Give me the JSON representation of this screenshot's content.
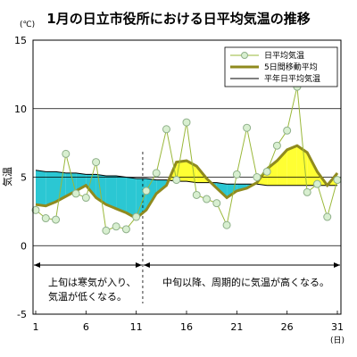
{
  "chart_data": {
    "type": "line",
    "title": "1月の日立市役所における日平均気温の推移",
    "y_unit": "(℃)",
    "ylabel": "気温",
    "x_unit": "(日)",
    "ylim": [
      -5,
      15
    ],
    "y_ticks": [
      15,
      10,
      5,
      0,
      -5
    ],
    "xlim": [
      1,
      31
    ],
    "x_ticks": [
      1,
      6,
      11,
      16,
      21,
      26,
      31
    ],
    "x": [
      1,
      2,
      3,
      4,
      5,
      6,
      7,
      8,
      9,
      10,
      11,
      12,
      13,
      14,
      15,
      16,
      17,
      18,
      19,
      20,
      21,
      22,
      23,
      24,
      25,
      26,
      27,
      28,
      29,
      30,
      31
    ],
    "series": [
      {
        "name": "日平均気温",
        "color": "#9ab83a",
        "marker": "circle",
        "marker_fill": "#d8efd0",
        "values": [
          2.6,
          2.0,
          1.9,
          6.7,
          3.8,
          3.5,
          6.1,
          1.1,
          1.4,
          1.2,
          2.1,
          4.0,
          5.3,
          8.5,
          4.8,
          9.0,
          3.7,
          3.4,
          3.1,
          1.5,
          5.2,
          8.6,
          5.0,
          5.4,
          7.3,
          8.4,
          11.6,
          3.9,
          4.5,
          2.1,
          4.8
        ]
      },
      {
        "name": "5日間移動平均",
        "color": "#8f8a1e",
        "values": [
          3.0,
          2.9,
          3.2,
          3.6,
          4.0,
          4.4,
          3.5,
          3.0,
          2.7,
          2.4,
          2.0,
          2.6,
          3.8,
          4.4,
          6.1,
          6.2,
          5.8,
          4.9,
          4.2,
          3.5,
          4.0,
          4.2,
          4.6,
          5.6,
          6.2,
          7.0,
          7.3,
          6.8,
          5.4,
          4.4,
          5.3
        ]
      },
      {
        "name": "平年日平均気温",
        "color": "#000000",
        "values": [
          5.5,
          5.4,
          5.4,
          5.3,
          5.3,
          5.2,
          5.2,
          5.1,
          5.1,
          5.0,
          4.9,
          4.9,
          4.8,
          4.8,
          4.7,
          4.7,
          4.6,
          4.6,
          4.6,
          4.5,
          4.5,
          4.5,
          4.5,
          4.4,
          4.4,
          4.4,
          4.4,
          4.4,
          4.4,
          4.4,
          4.4
        ]
      }
    ],
    "fill_above_normal": "#ffff33",
    "fill_below_normal": "#2bc7d3",
    "divider_day": 12,
    "annotation_left": [
      "上旬は寒気が入り、",
      "気温が低くなる。"
    ],
    "annotation_right": "中旬以降、周期的に気温が高くなる。",
    "legend_position": "top-right"
  }
}
